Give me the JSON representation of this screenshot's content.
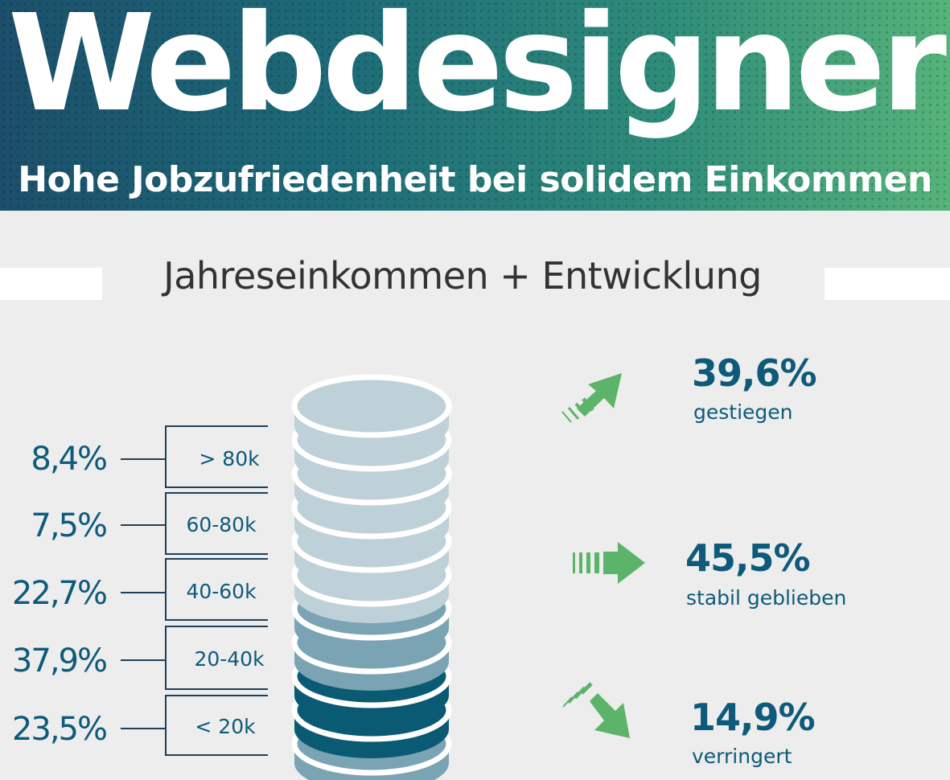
{
  "header": {
    "title": "Webdesigner",
    "subtitle": "Hohe Jobzufriedenheit bei solidem Einkommen"
  },
  "section": {
    "title": "Jahreseinkommen + Entwicklung"
  },
  "income_brackets": [
    {
      "percent": "8,4%",
      "range": "> 80k"
    },
    {
      "percent": "7,5%",
      "range": "60-80k"
    },
    {
      "percent": "22,7%",
      "range": "40-60k"
    },
    {
      "percent": "37,9%",
      "range": "20-40k"
    },
    {
      "percent": "23,5%",
      "range": "< 20k"
    }
  ],
  "trends": [
    {
      "value": "39,6%",
      "label": "gestiegen",
      "icon": "arrow-up-right-icon"
    },
    {
      "value": "45,5%",
      "label": "stabil geblieben",
      "icon": "arrow-right-icon"
    },
    {
      "value": "14,9%",
      "label": "verringert",
      "icon": "arrow-down-right-icon"
    }
  ],
  "colors": {
    "banner_start": "#1c4f6b",
    "banner_end": "#56b37a",
    "text_primary": "#0e5a7a",
    "coin_light": "#bfd1d8",
    "coin_mid": "#7aa4b4",
    "coin_dark": "#0a5a74",
    "arrow_green": "#5cb46a"
  }
}
